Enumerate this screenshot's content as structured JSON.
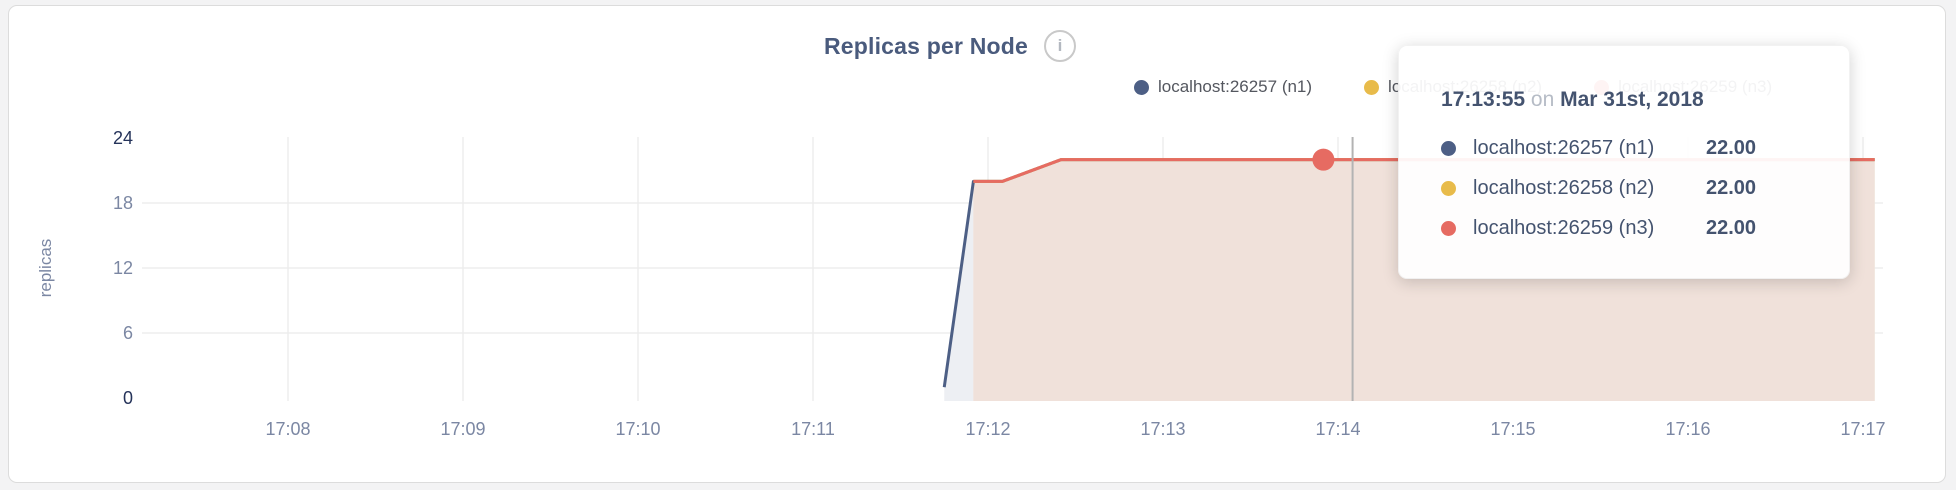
{
  "page": {
    "background": "#f3f3f4",
    "card_border": "#dcdcdc"
  },
  "header": {
    "info_icon_glyph": "i"
  },
  "chart_data": {
    "type": "area",
    "title": "Replicas per Node",
    "ylabel": "replicas",
    "ylim": [
      0,
      24
    ],
    "yticks": [
      0,
      6,
      12,
      18,
      24
    ],
    "xticks": [
      "17:08",
      "17:09",
      "17:10",
      "17:11",
      "17:12",
      "17:13",
      "17:14",
      "17:15",
      "17:16",
      "17:17"
    ],
    "grid": true,
    "legend_position": "top-right",
    "series": [
      {
        "name": "localhost:26257 (n1)",
        "color": "#4d5f85",
        "fill": "#edeff3",
        "points": [
          [
            "17:11:45",
            1
          ],
          [
            "17:11:55",
            20
          ],
          [
            "17:12:05",
            20
          ],
          [
            "17:12:25",
            22
          ],
          [
            "17:17:04",
            22
          ]
        ]
      },
      {
        "name": "localhost:26258 (n2)",
        "color": "#e8bb4a",
        "fill": "#f7ecd4",
        "points": [
          [
            "17:11:55",
            20
          ],
          [
            "17:12:05",
            20
          ],
          [
            "17:12:25",
            22
          ],
          [
            "17:17:04",
            22
          ]
        ]
      },
      {
        "name": "localhost:26259 (n3)",
        "color": "#e66b62",
        "fill": "#f0e1da",
        "points": [
          [
            "17:11:55",
            20
          ],
          [
            "17:12:05",
            20
          ],
          [
            "17:12:25",
            22
          ],
          [
            "17:17:04",
            22
          ]
        ]
      }
    ],
    "hover": {
      "crosshair_time": "17:14:05",
      "point_series": "localhost:26259 (n3)",
      "point_time": "17:13:55",
      "point_value": 22
    }
  },
  "tooltip": {
    "time": "17:13:55",
    "connector": "on",
    "date": "Mar 31st, 2018",
    "rows": [
      {
        "label": "localhost:26257 (n1)",
        "value": "22.00",
        "color": "#4d5f85"
      },
      {
        "label": "localhost:26258 (n2)",
        "value": "22.00",
        "color": "#e8bb4a"
      },
      {
        "label": "localhost:26259 (n3)",
        "value": "22.00",
        "color": "#e66b62"
      }
    ]
  }
}
